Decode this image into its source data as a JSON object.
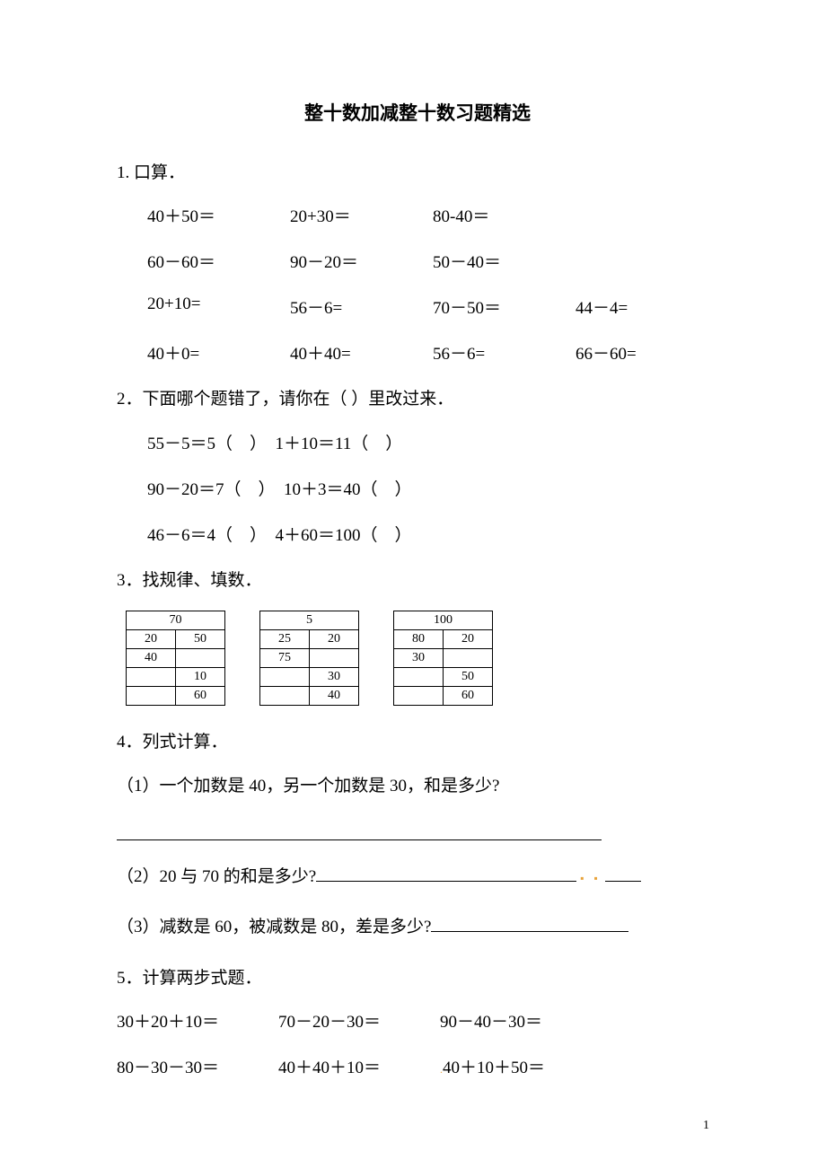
{
  "title": "整十数加减整十数习题精选",
  "q1": {
    "head": "1. 口算．",
    "rows": [
      [
        "40＋50＝",
        "20+30＝",
        "80-40＝",
        ""
      ],
      [
        "60－60＝",
        "90－20＝",
        "50－40＝",
        ""
      ],
      [
        "20+10=",
        "56－6=",
        "70－50＝",
        "44－4="
      ],
      [
        "40＋0=",
        "40＋40=",
        "56－6=",
        "66－60="
      ]
    ]
  },
  "q2": {
    "head": "2．下面哪个题错了，请你在（ ）里改过来．",
    "lines": [
      "55－5＝5（　）　1＋10＝11（　）",
      "90－20＝7（　）　10＋3＝40（　）",
      "46－6＝4（　）　4＋60＝100（　）"
    ]
  },
  "q3": {
    "head": "3．找规律、填数．",
    "tables": [
      {
        "header": "70",
        "rows": [
          [
            "20",
            "50"
          ],
          [
            "40",
            ""
          ],
          [
            "",
            "10"
          ],
          [
            "",
            "60"
          ]
        ]
      },
      {
        "header": "5",
        "rows": [
          [
            "25",
            "20"
          ],
          [
            "75",
            ""
          ],
          [
            "",
            "30"
          ],
          [
            "",
            "40"
          ]
        ]
      },
      {
        "header": "100",
        "rows": [
          [
            "80",
            "20"
          ],
          [
            "30",
            ""
          ],
          [
            "",
            "50"
          ],
          [
            "",
            "60"
          ]
        ]
      }
    ]
  },
  "q4": {
    "head": "4．列式计算．",
    "p1": "（1）一个加数是 40，另一个加数是 30，和是多少?",
    "p2_a": "（2）20 与 70 的和是多少?",
    "p3_a": "（3）减数是 60，被减数是 80，差是多少?"
  },
  "q5": {
    "head": "5．计算两步式题．",
    "rows": [
      [
        "30＋20＋10＝",
        "70－20－30＝",
        "90－40－30＝"
      ],
      [
        "80－30－30＝",
        "40＋40＋10＝",
        "40＋10＋50＝"
      ]
    ]
  },
  "page_number": "1",
  "colors": {
    "text": "#000000",
    "background": "#ffffff",
    "accent_orange": "#e8a23a"
  }
}
